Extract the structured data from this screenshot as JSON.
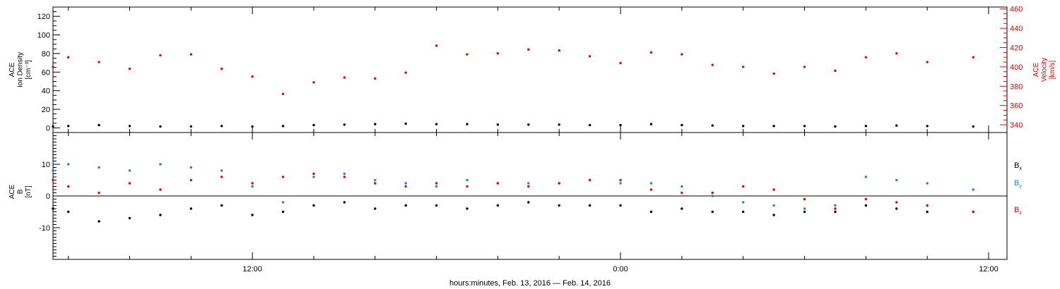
{
  "chart_data": [
    {
      "type": "scatter",
      "panel": "top",
      "ylabel_lines": [
        "ACE",
        "Ion Density",
        "[cm⁻³]"
      ],
      "y2label_lines": [
        "ACE",
        "Velocity",
        "[km/s]"
      ],
      "ylim": [
        -5,
        130
      ],
      "y_ticks": [
        0,
        20,
        40,
        60,
        80,
        100,
        120
      ],
      "y2lim": [
        332,
        462
      ],
      "y2_ticks": [
        340,
        360,
        380,
        400,
        420,
        440,
        460
      ],
      "series": [
        {
          "axis": "left",
          "color": "#000000",
          "x": [
            5.5,
            6,
            7,
            8,
            9,
            10,
            11,
            12,
            13,
            14,
            15,
            16,
            17,
            18,
            19,
            20,
            21,
            22,
            23,
            24,
            25,
            26,
            27,
            28,
            29,
            30,
            31,
            32,
            33,
            34,
            35.5
          ],
          "y": [
            1.5,
            2,
            3,
            2,
            1.5,
            1.5,
            2,
            1.5,
            2,
            3,
            3.5,
            4,
            4.5,
            4,
            4,
            3.5,
            3.5,
            3.5,
            3,
            3,
            4,
            3,
            2.5,
            2,
            2,
            2,
            1.5,
            2,
            2.5,
            2,
            1.5
          ]
        },
        {
          "axis": "right",
          "color": "#ee0000",
          "x": [
            5.5,
            6,
            7,
            8,
            9,
            10,
            11,
            12,
            13,
            14,
            15,
            16,
            17,
            18,
            19,
            20,
            21,
            22,
            23,
            24,
            25,
            26,
            27,
            28,
            29,
            30,
            31,
            32,
            33,
            34,
            35.5
          ],
          "y": [
            400,
            410,
            405,
            398,
            412,
            413,
            398,
            390,
            372,
            384,
            389,
            388,
            394,
            422,
            413,
            414,
            418,
            417,
            411,
            404,
            415,
            413,
            402,
            400,
            393,
            400,
            396,
            410,
            414,
            405,
            410
          ]
        }
      ]
    },
    {
      "type": "scatter",
      "panel": "bottom",
      "ylabel_lines": [
        "ACE",
        "B",
        "[nT]"
      ],
      "ylim": [
        -20,
        20
      ],
      "y_ticks": [
        -10,
        0,
        10
      ],
      "legend_position": "right",
      "series": [
        {
          "name": "Bx",
          "color": "#000000",
          "x": [
            5.5,
            6,
            7,
            8,
            9,
            10,
            11,
            12,
            13,
            14,
            15,
            16,
            17,
            18,
            19,
            20,
            21,
            22,
            23,
            24,
            25,
            26,
            27,
            28,
            29,
            30,
            31,
            32,
            33,
            34,
            35.5
          ],
          "y": [
            -4,
            -5,
            -8,
            -7,
            -6,
            -4,
            -3,
            -6,
            -5,
            -3,
            -2,
            -4,
            -3,
            -3,
            -4,
            -3,
            -2,
            -3,
            -3,
            -3,
            -5,
            -4,
            -5,
            -5,
            -6,
            -5,
            -5,
            -3,
            -4,
            -5,
            -5
          ]
        },
        {
          "name": "By",
          "color": "#2080e0",
          "x": [
            5.5,
            6,
            7,
            8,
            9,
            10,
            11,
            12,
            13,
            14,
            15,
            16,
            17,
            18,
            19,
            20,
            21,
            22,
            23,
            24,
            25,
            26,
            27,
            28,
            29,
            30,
            31,
            32,
            33,
            34,
            35.5
          ],
          "y": [
            8,
            10,
            9,
            8,
            10,
            9,
            8,
            3,
            -2,
            6,
            7,
            5,
            4,
            3,
            5,
            4,
            4,
            4,
            5,
            4,
            4,
            3,
            0,
            -2,
            -3,
            -4,
            -3,
            6,
            5,
            4,
            2
          ]
        },
        {
          "name": "Bz",
          "color": "#ee0000",
          "x": [
            5.5,
            6,
            7,
            8,
            9,
            10,
            11,
            12,
            13,
            14,
            15,
            16,
            17,
            18,
            19,
            20,
            21,
            22,
            23,
            24,
            25,
            26,
            27,
            28,
            29,
            30,
            31,
            32,
            33,
            34,
            35.5
          ],
          "y": [
            5,
            3,
            1,
            4,
            2,
            5,
            6,
            4,
            6,
            7,
            6,
            4,
            3,
            4,
            3,
            4,
            3,
            4,
            5,
            5,
            2,
            1,
            1,
            3,
            2,
            -1,
            -4,
            -1,
            -2,
            -3,
            -5
          ]
        }
      ]
    }
  ],
  "x_axis": {
    "ticks": [
      {
        "x": 12,
        "label": "12:00"
      },
      {
        "x": 24,
        "label": "0:00"
      },
      {
        "x": 36,
        "label": "12:00"
      }
    ],
    "xlim": [
      5.5,
      36.6
    ],
    "minor_step_hours": 2,
    "xlabel": "hours:minutes, Feb. 13, 2016 — Feb. 14, 2016"
  },
  "legend": {
    "bx": {
      "main": "B",
      "sub": "x",
      "color": "#000000"
    },
    "by": {
      "main": "B",
      "sub": "y",
      "color": "#2080e0"
    },
    "bz": {
      "main": "B",
      "sub": "z",
      "color": "#ee0000"
    }
  }
}
